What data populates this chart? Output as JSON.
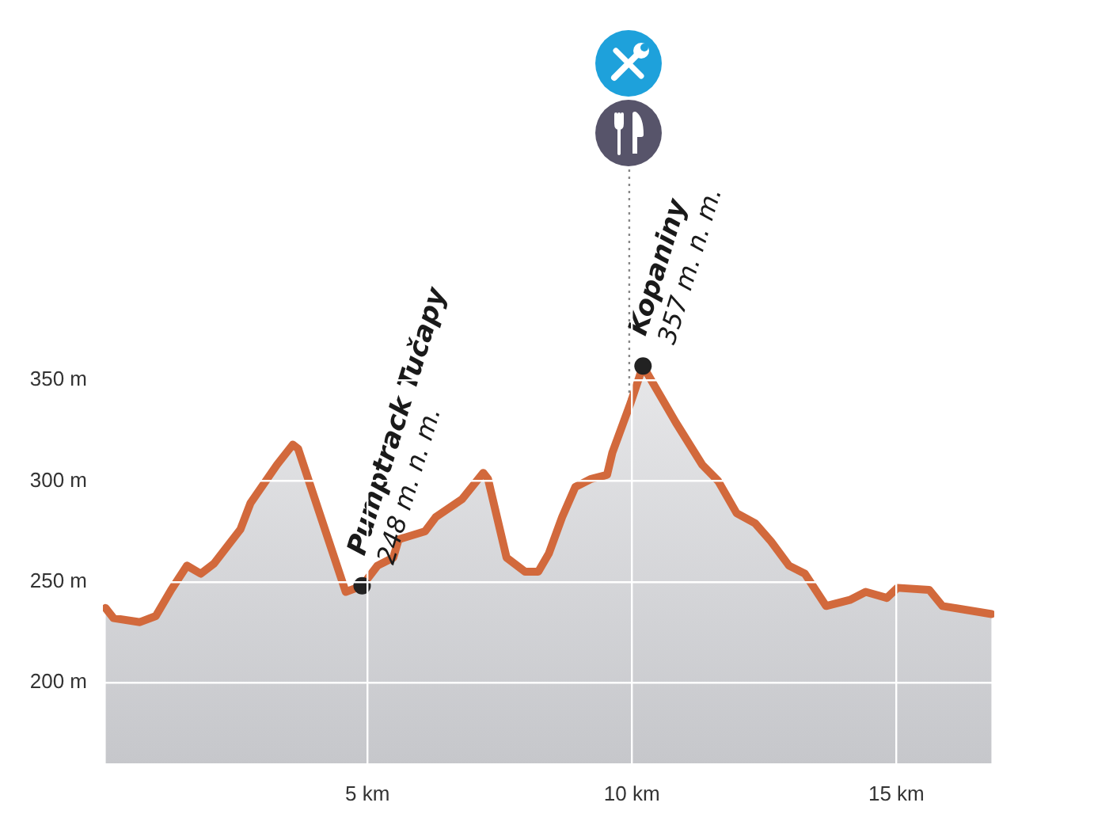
{
  "chart_data": {
    "type": "area",
    "x": [
      0.05,
      0.2,
      0.7,
      1.0,
      1.29,
      1.59,
      1.85,
      2.1,
      2.6,
      2.79,
      3.29,
      3.59,
      3.69,
      4.59,
      4.9,
      5.19,
      5.49,
      5.59,
      6.09,
      6.29,
      6.79,
      7.19,
      7.28,
      7.63,
      7.98,
      8.23,
      8.43,
      8.68,
      8.93,
      9.23,
      9.53,
      9.63,
      9.98,
      10.21,
      10.83,
      11.33,
      11.63,
      11.98,
      12.33,
      12.63,
      12.97,
      13.27,
      13.67,
      14.12,
      14.42,
      14.82,
      15.02,
      15.62,
      15.87,
      16.8
    ],
    "series": [
      {
        "color": "#d2693c",
        "values": [
          237,
          232,
          230,
          233,
          246,
          258,
          254,
          259,
          276,
          289,
          308,
          318,
          316,
          245,
          248,
          258,
          262,
          271,
          275,
          282,
          291,
          304,
          301,
          262,
          255,
          255,
          264,
          282,
          297,
          301,
          303,
          314,
          339,
          357,
          329,
          308,
          300,
          284,
          279,
          270,
          258,
          254,
          238,
          241,
          245,
          242,
          247,
          246,
          238,
          234
        ]
      }
    ],
    "xlim": [
      0,
      16.85
    ],
    "ylim": [
      160,
      456
    ],
    "xticks": [
      {
        "value": 5,
        "label": "5 km"
      },
      {
        "value": 10,
        "label": "10 km"
      },
      {
        "value": 15,
        "label": "15 km"
      }
    ],
    "yticks": [
      {
        "value": 200,
        "label": "200 m"
      },
      {
        "value": 250,
        "label": "250 m"
      },
      {
        "value": 300,
        "label": "300 m"
      },
      {
        "value": 350,
        "label": "350 m"
      }
    ],
    "grid": true,
    "legend": false,
    "marker": "none",
    "line_style": "solid",
    "ref_lines": [
      {
        "axis": "x",
        "value": 9.95,
        "color": "#888888",
        "line_style": "dotted"
      }
    ],
    "annotations": [
      {
        "text": "Pumptrack Tučapy\n248 m. n. m.",
        "x": 4.9,
        "y": 248
      },
      {
        "text": "Kopaniny\n357 m. n. m.",
        "x": 10.21,
        "y": 357
      }
    ]
  }
}
